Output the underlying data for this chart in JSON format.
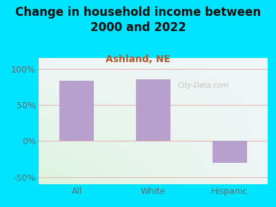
{
  "title": "Change in household income between\n2000 and 2022",
  "subtitle": "Ashland, NE",
  "categories": [
    "All",
    "White",
    "Hispanic"
  ],
  "values": [
    83,
    85,
    -30
  ],
  "bar_color": "#b8a0cc",
  "title_fontsize": 12,
  "subtitle_fontsize": 10,
  "subtitle_color": "#b05a30",
  "title_color": "#111111",
  "tick_label_color": "#666666",
  "ylim": [
    -60,
    115
  ],
  "yticks": [
    -50,
    0,
    50,
    100
  ],
  "ytick_labels": [
    "-50%",
    "0%",
    "50%",
    "100%"
  ],
  "background_outer": "#00e5ff",
  "watermark": "City-Data.com",
  "grid_color": "#e8b0b0",
  "grid_linewidth": 0.7,
  "bar_width": 0.45
}
